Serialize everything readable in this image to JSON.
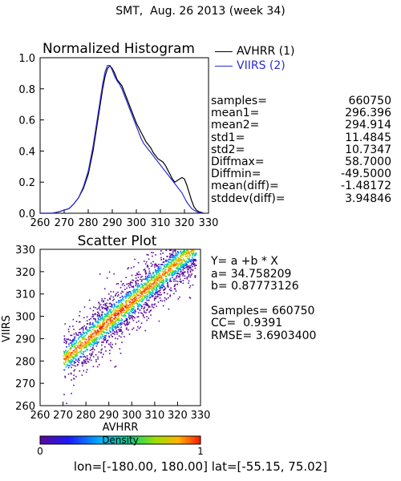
{
  "main_title": "SMT,  Aug. 26 2013 (week 34)",
  "legend": [
    {
      "label": "AVHRR (1)",
      "color": "#000000"
    },
    {
      "label": "VIIRS (2)",
      "color": "#2b2bd6"
    }
  ],
  "stats": [
    {
      "key": "samples=",
      "value": "660750"
    },
    {
      "key": "mean1=",
      "value": "296.396"
    },
    {
      "key": "mean2=",
      "value": "294.914"
    },
    {
      "key": "std1=",
      "value": "11.4845"
    },
    {
      "key": "std2=",
      "value": "10.7347"
    },
    {
      "key": "Diffmax=",
      "value": "58.7000"
    },
    {
      "key": "Diffmin=",
      "value": "-49.5000"
    },
    {
      "key": "mean(diff)=",
      "value": "-1.48172"
    },
    {
      "key": "stddev(diff)=",
      "value": "3.94846"
    }
  ],
  "fit": {
    "equation": "Y= a +b * X",
    "a": "a= 34.758209",
    "b": "b= 0.87773126",
    "samples": "Samples= 660750",
    "cc": "CC=  0.9391",
    "rmse": "RMSE= 3.6903400"
  },
  "colorbar": {
    "label": "Density",
    "min": "0",
    "max": "1"
  },
  "footer": "lon=[-180.00, 180.00] lat=[-55.15, 75.02]",
  "chart_data": [
    {
      "type": "line",
      "title": "Normalized Histogram",
      "xlabel": "",
      "ylabel": "",
      "xlim": [
        260,
        330
      ],
      "ylim": [
        0.0,
        1.0
      ],
      "xticks": [
        "260",
        "270",
        "280",
        "290",
        "300",
        "310",
        "320",
        "330"
      ],
      "yticks": [
        "0.0",
        "0.2",
        "0.4",
        "0.6",
        "0.8",
        "1.0"
      ],
      "series": [
        {
          "name": "AVHRR (1)",
          "color": "#000000",
          "x": [
            260,
            265,
            268,
            270,
            272,
            274,
            276,
            278,
            280,
            282,
            284,
            285,
            286,
            287,
            288,
            289,
            290,
            291,
            292,
            293,
            294,
            295,
            296,
            297,
            298,
            299,
            300,
            301,
            302,
            303,
            304,
            305,
            306,
            307,
            308,
            309,
            310,
            311,
            312,
            313,
            314,
            315,
            316,
            317,
            318,
            319,
            320,
            321,
            322,
            323,
            324,
            325,
            326,
            327,
            328
          ],
          "y": [
            0.0,
            0.0,
            0.01,
            0.02,
            0.03,
            0.06,
            0.1,
            0.16,
            0.25,
            0.4,
            0.6,
            0.7,
            0.8,
            0.88,
            0.93,
            0.95,
            0.93,
            0.9,
            0.86,
            0.84,
            0.82,
            0.78,
            0.74,
            0.7,
            0.66,
            0.62,
            0.58,
            0.55,
            0.52,
            0.49,
            0.46,
            0.44,
            0.42,
            0.39,
            0.37,
            0.35,
            0.34,
            0.33,
            0.31,
            0.28,
            0.25,
            0.22,
            0.2,
            0.21,
            0.22,
            0.23,
            0.22,
            0.18,
            0.13,
            0.08,
            0.04,
            0.02,
            0.01,
            0.005,
            0.0
          ]
        },
        {
          "name": "VIIRS (2)",
          "color": "#2b2bd6",
          "x": [
            260,
            265,
            268,
            270,
            272,
            274,
            276,
            278,
            280,
            282,
            284,
            285,
            286,
            287,
            288,
            289,
            290,
            291,
            292,
            293,
            294,
            295,
            296,
            297,
            298,
            299,
            300,
            301,
            302,
            303,
            304,
            305,
            306,
            307,
            308,
            309,
            310,
            311,
            312,
            313,
            314,
            315,
            316,
            317,
            318,
            319,
            320,
            321,
            322,
            323,
            324,
            325,
            326,
            327,
            328
          ],
          "y": [
            0.0,
            0.0,
            0.01,
            0.02,
            0.03,
            0.06,
            0.1,
            0.17,
            0.27,
            0.43,
            0.63,
            0.73,
            0.83,
            0.91,
            0.95,
            0.95,
            0.92,
            0.88,
            0.85,
            0.83,
            0.8,
            0.76,
            0.72,
            0.68,
            0.64,
            0.6,
            0.56,
            0.52,
            0.48,
            0.45,
            0.43,
            0.41,
            0.39,
            0.37,
            0.35,
            0.33,
            0.31,
            0.29,
            0.27,
            0.25,
            0.23,
            0.21,
            0.19,
            0.17,
            0.15,
            0.13,
            0.1,
            0.07,
            0.05,
            0.03,
            0.02,
            0.01,
            0.005,
            0.0,
            0.0
          ]
        }
      ]
    },
    {
      "type": "heatmap",
      "title": "Scatter Plot",
      "xlabel": "AVHRR",
      "ylabel": "VIIRS",
      "xlim": [
        260,
        330
      ],
      "ylim": [
        260,
        330
      ],
      "xticks": [
        "260",
        "270",
        "280",
        "290",
        "300",
        "310",
        "320",
        "330"
      ],
      "yticks": [
        "260",
        "270",
        "280",
        "290",
        "300",
        "310",
        "320",
        "330"
      ],
      "colorscale": "density 0 (purple) to 1 (red)",
      "fit_line": {
        "a": 34.758209,
        "b": 0.87773126
      }
    }
  ]
}
